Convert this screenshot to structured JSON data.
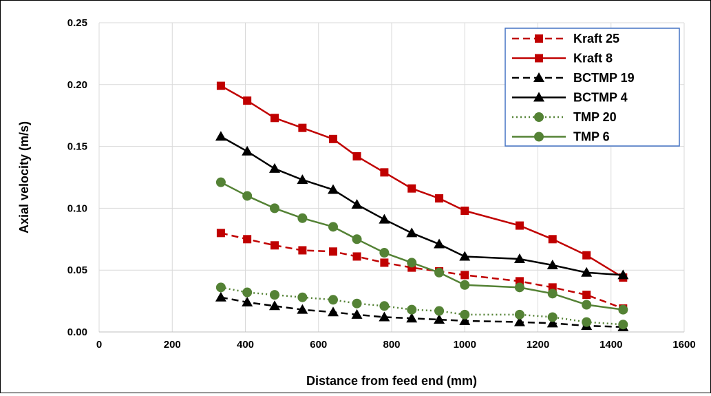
{
  "chart_data": {
    "type": "line",
    "xlabel": "Distance from feed end (mm)",
    "ylabel": "Axial velocity (m/s)",
    "xlim": [
      0,
      1600
    ],
    "ylim": [
      0,
      0.25
    ],
    "x_ticks": [
      "0",
      "200",
      "400",
      "600",
      "800",
      "1000",
      "1200",
      "1400",
      "1600"
    ],
    "y_ticks": [
      "0.00",
      "0.05",
      "0.10",
      "0.15",
      "0.20",
      "0.25"
    ],
    "grid": true,
    "legend_position": "top-right",
    "series": [
      {
        "name": "Kraft 25",
        "color": "#c00000",
        "dash": "dashed",
        "marker": "square",
        "x": [
          333,
          405,
          480,
          556,
          640,
          705,
          780,
          855,
          930,
          1000,
          1150,
          1240,
          1333,
          1433
        ],
        "y": [
          0.08,
          0.075,
          0.07,
          0.066,
          0.065,
          0.061,
          0.056,
          0.052,
          0.049,
          0.046,
          0.041,
          0.036,
          0.03,
          0.019
        ]
      },
      {
        "name": "Kraft 8",
        "color": "#c00000",
        "dash": "solid",
        "marker": "square",
        "x": [
          333,
          405,
          480,
          556,
          640,
          705,
          780,
          855,
          930,
          1000,
          1150,
          1240,
          1333,
          1433
        ],
        "y": [
          0.199,
          0.187,
          0.173,
          0.165,
          0.156,
          0.142,
          0.129,
          0.116,
          0.108,
          0.098,
          0.086,
          0.075,
          0.062,
          0.044
        ]
      },
      {
        "name": "BCTMP 19",
        "color": "#000000",
        "dash": "dashed",
        "marker": "triangle",
        "x": [
          333,
          405,
          480,
          556,
          640,
          705,
          780,
          855,
          930,
          1000,
          1150,
          1240,
          1333,
          1433
        ],
        "y": [
          0.028,
          0.024,
          0.021,
          0.018,
          0.016,
          0.014,
          0.012,
          0.011,
          0.01,
          0.009,
          0.008,
          0.007,
          0.005,
          0.004
        ]
      },
      {
        "name": "BCTMP 4",
        "color": "#000000",
        "dash": "solid",
        "marker": "triangle",
        "x": [
          333,
          405,
          480,
          556,
          640,
          705,
          780,
          855,
          930,
          1000,
          1150,
          1240,
          1333,
          1433
        ],
        "y": [
          0.158,
          0.146,
          0.132,
          0.123,
          0.115,
          0.103,
          0.091,
          0.08,
          0.071,
          0.061,
          0.059,
          0.054,
          0.048,
          0.046
        ]
      },
      {
        "name": "TMP 20",
        "color": "#548235",
        "dash": "dotted",
        "marker": "circle",
        "x": [
          333,
          405,
          480,
          556,
          640,
          705,
          780,
          855,
          930,
          1000,
          1150,
          1240,
          1333,
          1433
        ],
        "y": [
          0.036,
          0.032,
          0.03,
          0.028,
          0.026,
          0.023,
          0.021,
          0.018,
          0.017,
          0.014,
          0.014,
          0.012,
          0.008,
          0.006
        ]
      },
      {
        "name": "TMP 6",
        "color": "#548235",
        "dash": "solid",
        "marker": "circle",
        "x": [
          333,
          405,
          480,
          556,
          640,
          705,
          780,
          855,
          930,
          1000,
          1150,
          1240,
          1333,
          1433
        ],
        "y": [
          0.121,
          0.11,
          0.1,
          0.092,
          0.085,
          0.075,
          0.064,
          0.056,
          0.048,
          0.038,
          0.036,
          0.031,
          0.022,
          0.018
        ]
      }
    ]
  }
}
